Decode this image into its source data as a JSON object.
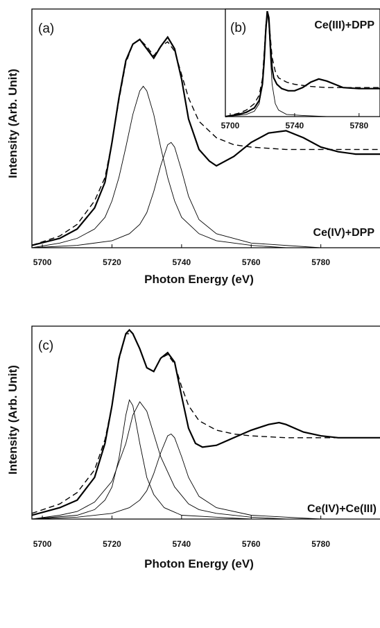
{
  "chart_data": [
    {
      "panel": "(a)",
      "type": "line",
      "xlabel": "Photon Energy (eV)",
      "ylabel": "Intensity (Arb. Unit)",
      "xlim": [
        5697,
        5797
      ],
      "ylim": [
        0,
        1.02
      ],
      "x_ticks": [
        "5700",
        "5720",
        "5740",
        "5760",
        "5780"
      ],
      "annotation": "Ce(IV)+DPP",
      "series": [
        {
          "style": "thick solid",
          "x": [
            5697,
            5705,
            5710,
            5715,
            5718,
            5720,
            5722,
            5724,
            5726,
            5728,
            5730,
            5732,
            5734,
            5736,
            5738,
            5740,
            5742,
            5745,
            5748,
            5750,
            5755,
            5760,
            5765,
            5770,
            5775,
            5780,
            5785,
            5790,
            5797
          ],
          "y": [
            0.01,
            0.04,
            0.08,
            0.17,
            0.28,
            0.45,
            0.64,
            0.8,
            0.87,
            0.89,
            0.85,
            0.81,
            0.86,
            0.9,
            0.85,
            0.72,
            0.55,
            0.42,
            0.37,
            0.35,
            0.39,
            0.45,
            0.49,
            0.5,
            0.47,
            0.43,
            0.41,
            0.4,
            0.4
          ]
        },
        {
          "style": "dashed",
          "x": [
            5697,
            5705,
            5710,
            5715,
            5718,
            5720,
            5722,
            5724,
            5726,
            5728,
            5730,
            5732,
            5734,
            5736,
            5738,
            5740,
            5742,
            5745,
            5750,
            5755,
            5760,
            5770,
            5780,
            5790,
            5797
          ],
          "y": [
            0.01,
            0.05,
            0.1,
            0.2,
            0.3,
            0.45,
            0.63,
            0.79,
            0.87,
            0.89,
            0.86,
            0.82,
            0.86,
            0.88,
            0.84,
            0.74,
            0.64,
            0.54,
            0.47,
            0.44,
            0.43,
            0.42,
            0.42,
            0.42,
            0.42
          ]
        },
        {
          "style": "thin",
          "x": [
            5697,
            5705,
            5710,
            5715,
            5718,
            5720,
            5722,
            5724,
            5726,
            5728,
            5729,
            5730,
            5732,
            5734,
            5736,
            5738,
            5740,
            5745,
            5750,
            5760,
            5770,
            5780,
            5797
          ],
          "y": [
            0.0,
            0.02,
            0.04,
            0.08,
            0.13,
            0.2,
            0.3,
            0.43,
            0.57,
            0.67,
            0.69,
            0.67,
            0.57,
            0.43,
            0.3,
            0.2,
            0.13,
            0.06,
            0.03,
            0.01,
            0.0,
            0.0,
            0.0
          ]
        },
        {
          "style": "thin",
          "x": [
            5697,
            5710,
            5720,
            5725,
            5728,
            5730,
            5732,
            5734,
            5736,
            5737,
            5738,
            5740,
            5742,
            5745,
            5750,
            5760,
            5780,
            5797
          ],
          "y": [
            0.0,
            0.01,
            0.03,
            0.06,
            0.1,
            0.15,
            0.24,
            0.35,
            0.44,
            0.45,
            0.43,
            0.33,
            0.22,
            0.12,
            0.06,
            0.02,
            0.0,
            0.0
          ]
        }
      ]
    },
    {
      "panel": "(b)",
      "type": "line",
      "xlim": [
        5697,
        5793
      ],
      "ylim": [
        0,
        1.0
      ],
      "x_ticks": [
        "5700",
        "5740",
        "5780"
      ],
      "annotation": "Ce(III)+DPP",
      "series": [
        {
          "style": "thick solid",
          "x": [
            5697,
            5705,
            5710,
            5715,
            5718,
            5720,
            5721,
            5722,
            5723,
            5724,
            5725,
            5726,
            5727,
            5729,
            5732,
            5736,
            5740,
            5745,
            5750,
            5755,
            5760,
            5765,
            5770,
            5780,
            5793
          ],
          "y": [
            0.0,
            0.02,
            0.04,
            0.08,
            0.15,
            0.3,
            0.5,
            0.78,
            0.98,
            0.92,
            0.65,
            0.45,
            0.36,
            0.3,
            0.26,
            0.24,
            0.24,
            0.27,
            0.32,
            0.35,
            0.33,
            0.3,
            0.27,
            0.26,
            0.26
          ]
        },
        {
          "style": "dashed",
          "x": [
            5697,
            5705,
            5710,
            5715,
            5718,
            5720,
            5722,
            5723,
            5724,
            5726,
            5728,
            5730,
            5735,
            5740,
            5750,
            5760,
            5780,
            5793
          ],
          "y": [
            0.0,
            0.03,
            0.06,
            0.12,
            0.2,
            0.35,
            0.8,
            0.97,
            0.9,
            0.55,
            0.42,
            0.36,
            0.32,
            0.3,
            0.28,
            0.27,
            0.27,
            0.27
          ]
        },
        {
          "style": "thin",
          "x": [
            5697,
            5710,
            5715,
            5718,
            5720,
            5721,
            5722,
            5723,
            5724,
            5725,
            5726,
            5728,
            5730,
            5735,
            5745,
            5760,
            5793
          ],
          "y": [
            0.0,
            0.02,
            0.05,
            0.12,
            0.3,
            0.55,
            0.85,
            0.97,
            0.85,
            0.55,
            0.3,
            0.12,
            0.06,
            0.02,
            0.01,
            0.0,
            0.0
          ]
        }
      ]
    },
    {
      "panel": "(c)",
      "type": "line",
      "xlabel": "Photon Energy (eV)",
      "ylabel": "Intensity (Arb. Unit)",
      "xlim": [
        5697,
        5797
      ],
      "ylim": [
        0,
        1.02
      ],
      "x_ticks": [
        "5700",
        "5720",
        "5740",
        "5760",
        "5780"
      ],
      "annotation": "Ce(IV)+Ce(III)",
      "series": [
        {
          "style": "thick solid",
          "x": [
            5697,
            5705,
            5710,
            5715,
            5718,
            5720,
            5722,
            5724,
            5725,
            5726,
            5728,
            5730,
            5732,
            5734,
            5736,
            5738,
            5740,
            5742,
            5744,
            5746,
            5750,
            5755,
            5760,
            5765,
            5768,
            5770,
            5775,
            5780,
            5785,
            5790,
            5797
          ],
          "y": [
            0.02,
            0.06,
            0.1,
            0.22,
            0.4,
            0.6,
            0.85,
            0.98,
            1.0,
            0.98,
            0.9,
            0.8,
            0.78,
            0.85,
            0.88,
            0.83,
            0.65,
            0.48,
            0.4,
            0.38,
            0.39,
            0.43,
            0.47,
            0.5,
            0.51,
            0.5,
            0.46,
            0.44,
            0.43,
            0.43,
            0.43
          ]
        },
        {
          "style": "dashed",
          "x": [
            5697,
            5705,
            5710,
            5715,
            5718,
            5720,
            5722,
            5724,
            5726,
            5728,
            5730,
            5732,
            5734,
            5736,
            5738,
            5740,
            5742,
            5745,
            5750,
            5755,
            5760,
            5770,
            5780,
            5790,
            5797
          ],
          "y": [
            0.03,
            0.08,
            0.14,
            0.26,
            0.42,
            0.6,
            0.84,
            0.98,
            0.98,
            0.9,
            0.8,
            0.78,
            0.85,
            0.87,
            0.82,
            0.7,
            0.6,
            0.52,
            0.47,
            0.45,
            0.44,
            0.43,
            0.43,
            0.43,
            0.43
          ]
        },
        {
          "style": "thin",
          "x": [
            5697,
            5710,
            5715,
            5718,
            5720,
            5722,
            5724,
            5725,
            5726,
            5727,
            5728,
            5730,
            5732,
            5735,
            5740,
            5750,
            5760,
            5797
          ],
          "y": [
            0.0,
            0.02,
            0.05,
            0.1,
            0.17,
            0.32,
            0.55,
            0.63,
            0.6,
            0.5,
            0.4,
            0.22,
            0.13,
            0.06,
            0.02,
            0.01,
            0.0,
            0.0
          ]
        },
        {
          "style": "thin",
          "x": [
            5697,
            5705,
            5710,
            5715,
            5720,
            5724,
            5726,
            5728,
            5730,
            5732,
            5734,
            5738,
            5742,
            5745,
            5750,
            5760,
            5770,
            5797
          ],
          "y": [
            0.0,
            0.02,
            0.04,
            0.09,
            0.2,
            0.4,
            0.55,
            0.62,
            0.57,
            0.45,
            0.33,
            0.17,
            0.08,
            0.05,
            0.03,
            0.01,
            0.0,
            0.0
          ]
        },
        {
          "style": "thin",
          "x": [
            5697,
            5710,
            5720,
            5725,
            5728,
            5730,
            5732,
            5734,
            5736,
            5737,
            5738,
            5740,
            5742,
            5745,
            5750,
            5760,
            5780,
            5797
          ],
          "y": [
            0.0,
            0.01,
            0.03,
            0.06,
            0.1,
            0.15,
            0.24,
            0.35,
            0.44,
            0.45,
            0.43,
            0.33,
            0.22,
            0.12,
            0.06,
            0.02,
            0.0,
            0.0
          ]
        }
      ]
    }
  ]
}
